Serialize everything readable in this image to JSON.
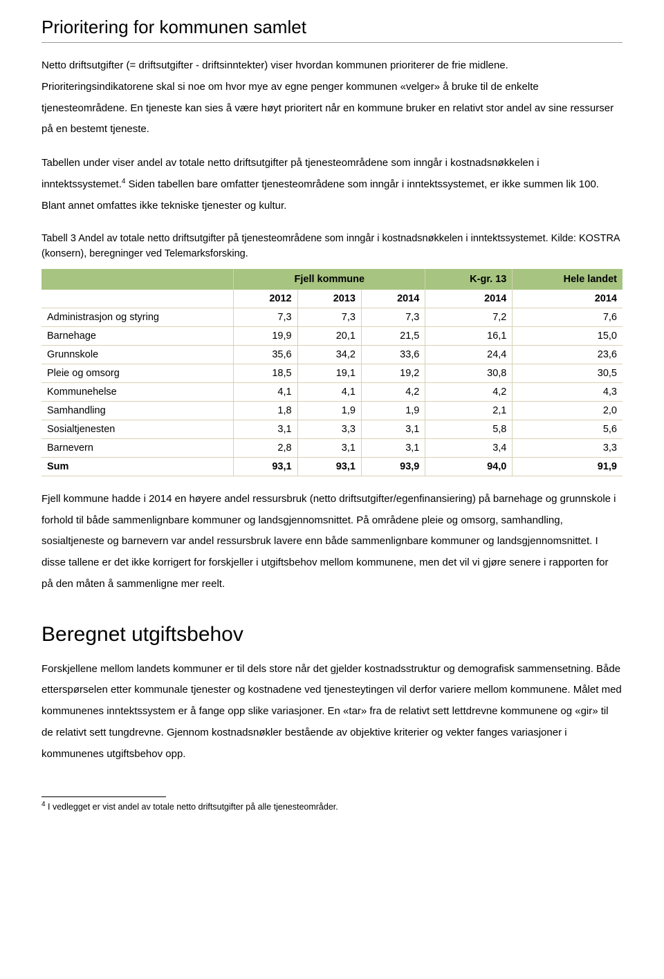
{
  "title1": "Prioritering for kommunen samlet",
  "para1": "Netto driftsutgifter (= driftsutgifter - driftsinntekter) viser hvordan kommunen prioriterer de frie midlene. Prioriteringsindikatorene skal si noe om hvor mye av egne penger kommunen «velger» å bruke til de enkelte tjenesteområdene. En tjeneste kan sies å være høyt prioritert når en kommune bruker en relativt stor andel av sine ressurser på en bestemt tjeneste.",
  "para2a": "Tabellen under viser andel av totale netto driftsutgifter på tjenesteområdene som inngår i kostnadsnøkkelen i inntektssystemet.",
  "para2sup": "4",
  "para2b": " Siden tabellen bare omfatter tjenesteområdene som inngår i inntektssystemet, er ikke summen lik 100. Blant annet omfattes ikke tekniske tjenester og kultur.",
  "caption": "Tabell 3 Andel av totale netto driftsutgifter på tjenesteområdene som inngår i kostnadsnøkkelen i inntektssystemet. Kilde: KOSTRA (konsern), beregninger ved Telemarksforsking.",
  "table": {
    "header_bg": "#a7c480",
    "border_color": "#d6d2b3",
    "group_headers": [
      "",
      "Fjell kommune",
      "K-gr. 13",
      "Hele landet"
    ],
    "group_spans": [
      1,
      3,
      1,
      1
    ],
    "year_headers": [
      "",
      "2012",
      "2013",
      "2014",
      "2014",
      "2014"
    ],
    "rows": [
      {
        "label": "Administrasjon og styring",
        "vals": [
          "7,3",
          "7,3",
          "7,3",
          "7,2",
          "7,6"
        ]
      },
      {
        "label": "Barnehage",
        "vals": [
          "19,9",
          "20,1",
          "21,5",
          "16,1",
          "15,0"
        ]
      },
      {
        "label": "Grunnskole",
        "vals": [
          "35,6",
          "34,2",
          "33,6",
          "24,4",
          "23,6"
        ]
      },
      {
        "label": "Pleie og omsorg",
        "vals": [
          "18,5",
          "19,1",
          "19,2",
          "30,8",
          "30,5"
        ]
      },
      {
        "label": "Kommunehelse",
        "vals": [
          "4,1",
          "4,1",
          "4,2",
          "4,2",
          "4,3"
        ]
      },
      {
        "label": "Samhandling",
        "vals": [
          "1,8",
          "1,9",
          "1,9",
          "2,1",
          "2,0"
        ]
      },
      {
        "label": "Sosialtjenesten",
        "vals": [
          "3,1",
          "3,3",
          "3,1",
          "5,8",
          "5,6"
        ]
      },
      {
        "label": "Barnevern",
        "vals": [
          "2,8",
          "3,1",
          "3,1",
          "3,4",
          "3,3"
        ]
      }
    ],
    "sum": {
      "label": "Sum",
      "vals": [
        "93,1",
        "93,1",
        "93,9",
        "94,0",
        "91,9"
      ]
    },
    "col_widths_pct": [
      33,
      11,
      11,
      11,
      15,
      19
    ]
  },
  "para3": "Fjell kommune hadde i 2014 en høyere andel ressursbruk (netto driftsutgifter/egenfinansiering) på barnehage og grunnskole i forhold til både sammenlignbare kommuner og landsgjennomsnittet. På områdene pleie og omsorg, samhandling, sosialtjeneste og barnevern var andel ressursbruk lavere enn både sammenlignbare kommuner og landsgjennomsnittet. I disse tallene er det ikke korrigert for forskjeller i utgiftsbehov mellom kommunene, men det vil vi gjøre senere i rapporten for på den måten å sammenligne mer reelt.",
  "title2": "Beregnet utgiftsbehov",
  "para4": "Forskjellene mellom landets kommuner er til dels store når det gjelder kostnadsstruktur og demografisk sammensetning. Både etterspørselen etter kommunale tjenester og kostnadene ved tjenesteytingen vil derfor variere mellom kommunene. Målet med kommunenes inntektssystem er å fange opp slike variasjoner. En «tar» fra de relativt sett lettdrevne kommunene og «gir» til de relativt sett tungdrevne. Gjennom kostnadsnøkler bestående av objektive kriterier og vekter fanges variasjoner i kommunenes utgiftsbehov opp.",
  "footnote_num": "4",
  "footnote_text": " I vedlegget er vist andel av totale netto driftsutgifter på alle tjenesteområder."
}
